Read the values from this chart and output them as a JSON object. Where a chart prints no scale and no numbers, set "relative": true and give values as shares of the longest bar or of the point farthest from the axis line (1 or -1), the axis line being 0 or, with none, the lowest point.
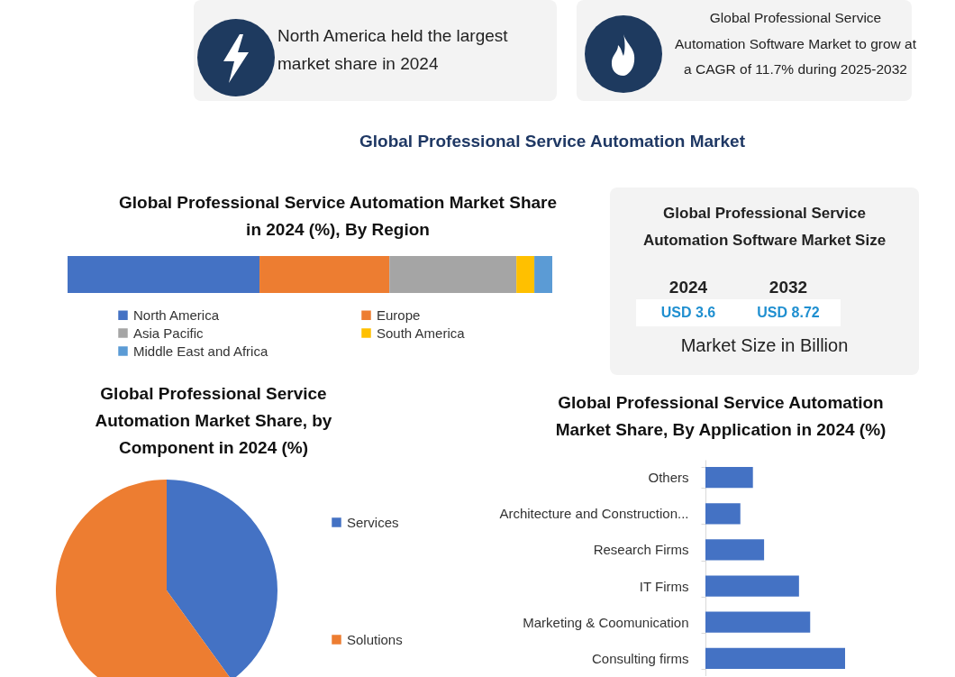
{
  "chart_data": [
    {
      "type": "other",
      "title": "Global Professional Service Automation Market",
      "annotations": [
        "North America held the largest market share in 2024",
        "Global Professional Service Automation Software Market to grow at a CAGR of 11.7% during 2025-2032"
      ]
    },
    {
      "type": "bar",
      "title": "Global Professional Service Automation Market Share in 2024 (%), By Region",
      "orientation": "horizontal",
      "stacked": true,
      "relative": true,
      "legend": "bottom",
      "categories": [
        null
      ],
      "series": [
        {
          "name": "North America",
          "color": "#4472c4",
          "values": [
            0.396
          ]
        },
        {
          "name": "Europe",
          "color": "#ed7d31",
          "values": [
            0.268
          ]
        },
        {
          "name": "Asia Pacific",
          "color": "#a5a5a5",
          "values": [
            0.262
          ]
        },
        {
          "name": "South America",
          "color": "#ffc000",
          "values": [
            0.037
          ]
        },
        {
          "name": "Middle East and Africa",
          "color": "#5b9bd5",
          "values": [
            0.037
          ]
        }
      ]
    },
    {
      "type": "other",
      "title": "Global Professional Service Automation Software Market Size",
      "categories": [
        "2024",
        "2032"
      ],
      "value_labels": [
        "USD 3.6",
        "USD 8.72"
      ],
      "annotations": [
        "Market Size in Billion"
      ]
    },
    {
      "type": "pie",
      "title": "Global Professional Service Automation Market Share, by Component in 2024 (%)",
      "legend": "right",
      "categories": [
        "Services",
        "Solutions"
      ],
      "values": [
        40,
        60
      ],
      "colors": [
        "#4472c4",
        "#ed7d31"
      ]
    },
    {
      "type": "bar",
      "title": "Global Professional Service Automation Market Share, By Application in 2024 (%)",
      "orientation": "horizontal",
      "relative": true,
      "categories": [
        "Others",
        "Architecture and Construction...",
        "Research Firms",
        "IT Firms",
        "Marketing & Coomunication",
        "Consulting firms"
      ],
      "values": [
        0.34,
        0.25,
        0.42,
        0.67,
        0.75,
        1
      ],
      "color": "#4472c4"
    }
  ]
}
